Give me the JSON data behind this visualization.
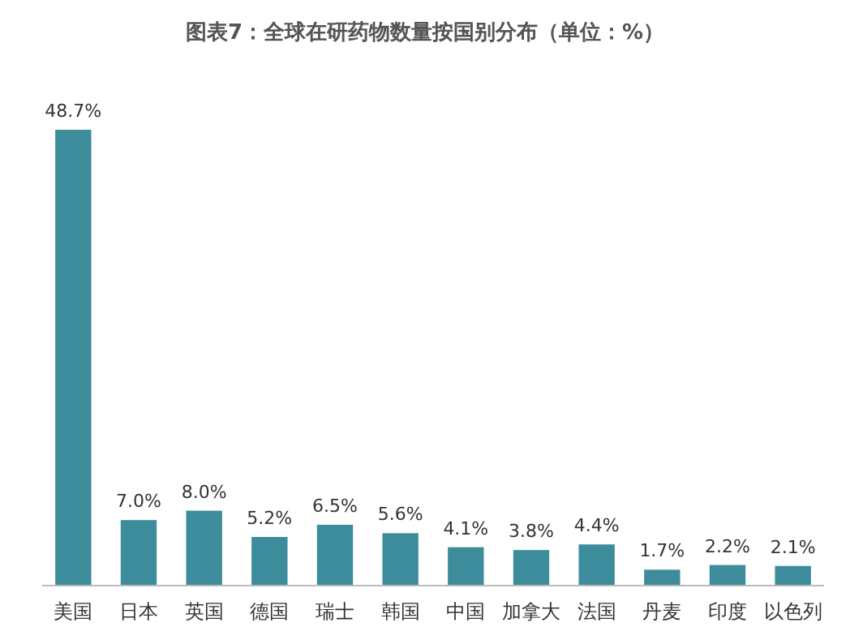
{
  "chart_data": {
    "type": "bar",
    "title": "图表7：全球在研药物数量按国别分布（单位：%）",
    "categories": [
      "美国",
      "日本",
      "英国",
      "德国",
      "瑞士",
      "韩国",
      "中国",
      "加拿大",
      "法国",
      "丹麦",
      "印度",
      "以色列"
    ],
    "values": [
      48.7,
      7.0,
      8.0,
      5.2,
      6.5,
      5.6,
      4.1,
      3.8,
      4.4,
      1.7,
      2.2,
      2.1
    ],
    "value_labels": [
      "48.7%",
      "7.0%",
      "8.0%",
      "5.2%",
      "6.5%",
      "5.6%",
      "4.1%",
      "3.8%",
      "4.4%",
      "1.7%",
      "2.2%",
      "2.1%"
    ],
    "color": "#3d8c9c"
  }
}
